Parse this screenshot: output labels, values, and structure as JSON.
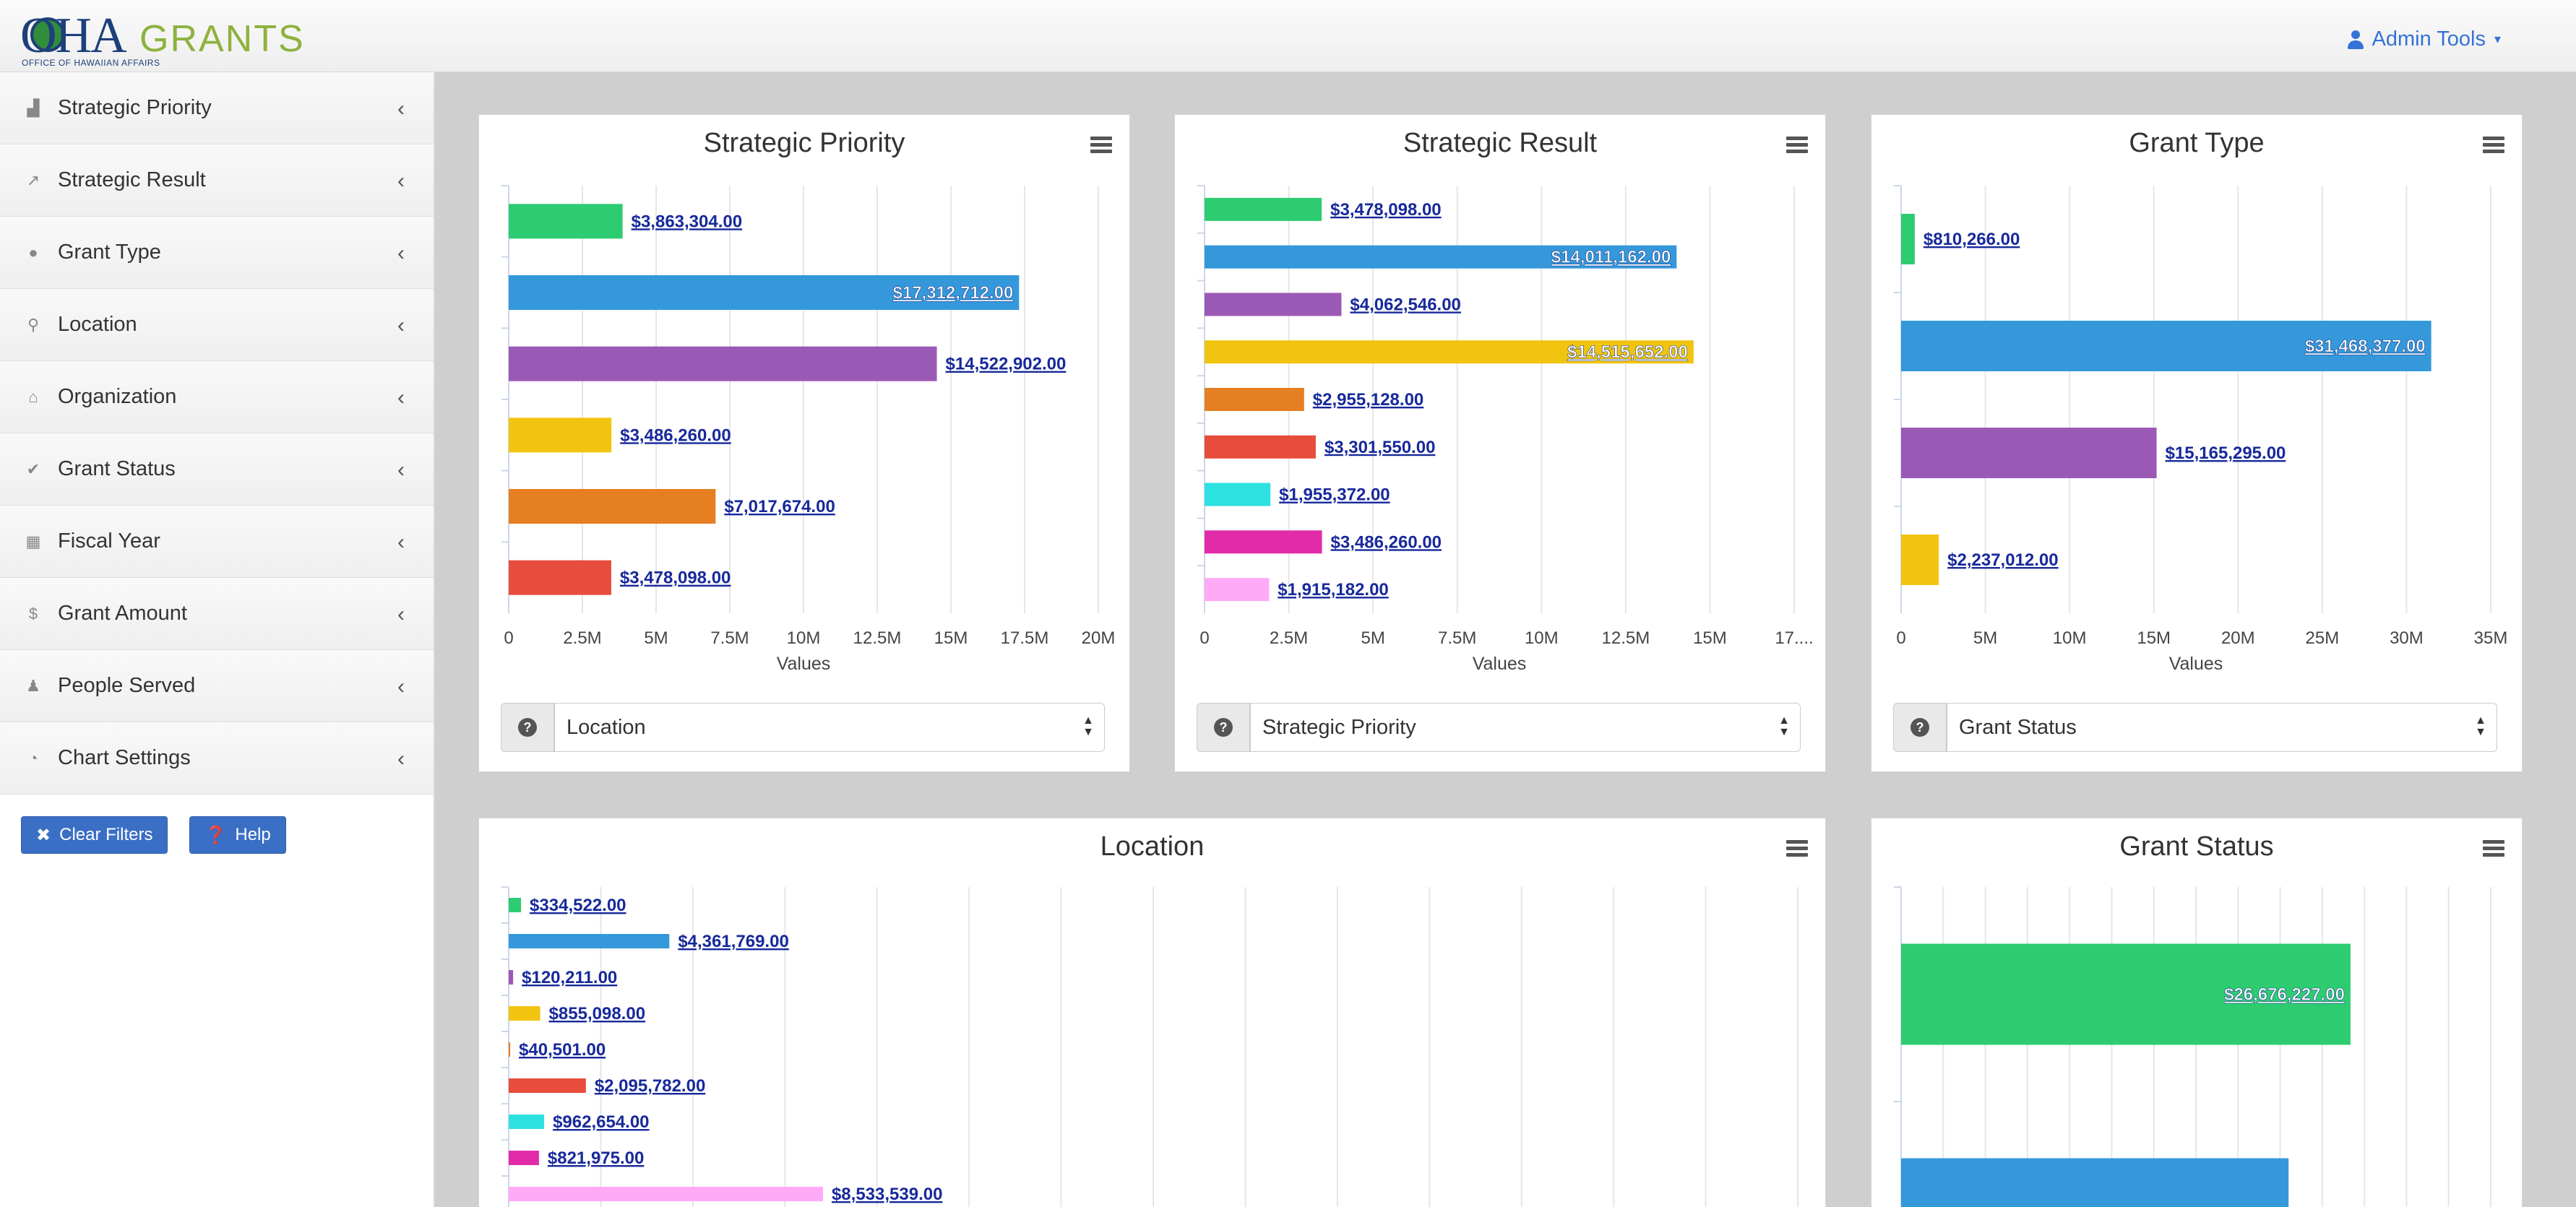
{
  "header": {
    "logo_main": "OHA",
    "logo_grants": "GRANTS",
    "logo_sub": "OFFICE OF HAWAIIAN AFFAIRS",
    "admin_label": "Admin Tools"
  },
  "sidebar": {
    "items": [
      {
        "label": "Strategic Priority",
        "icon": "area-chart-icon",
        "glyph": "▟"
      },
      {
        "label": "Strategic Result",
        "icon": "line-chart-icon",
        "glyph": "↗"
      },
      {
        "label": "Grant Type",
        "icon": "info-icon",
        "glyph": "●"
      },
      {
        "label": "Location",
        "icon": "map-marker-icon",
        "glyph": "⚲"
      },
      {
        "label": "Organization",
        "icon": "home-icon",
        "glyph": "⌂"
      },
      {
        "label": "Grant Status",
        "icon": "check-circle-icon",
        "glyph": "✔"
      },
      {
        "label": "Fiscal Year",
        "icon": "calendar-icon",
        "glyph": "▦"
      },
      {
        "label": "Grant Amount",
        "icon": "dollar-icon",
        "glyph": "$"
      },
      {
        "label": "People Served",
        "icon": "users-icon",
        "glyph": "♟"
      },
      {
        "label": "Chart Settings",
        "icon": "pie-chart-icon",
        "glyph": "◔"
      }
    ],
    "clear_filters": "Clear Filters",
    "help": "Help"
  },
  "colors": {
    "green": "#2ecc71",
    "blue": "#3498db",
    "purple": "#9b59b6",
    "yellow": "#f1c40f",
    "orange": "#e67e22",
    "red": "#e74c3c",
    "cyan": "#2de1e1",
    "magenta": "#e22ba8",
    "pink": "#ffaaf6"
  },
  "panels": {
    "strategic_priority": {
      "title": "Strategic Priority",
      "selector": "Location"
    },
    "strategic_result": {
      "title": "Strategic Result",
      "selector": "Strategic Priority"
    },
    "grant_type": {
      "title": "Grant Type",
      "selector": "Grant Status"
    },
    "location": {
      "title": "Location"
    },
    "grant_status": {
      "title": "Grant Status"
    }
  },
  "chart_data": [
    {
      "id": "strategic_priority",
      "type": "bar",
      "title": "Strategic Priority",
      "xlabel": "Values",
      "xlim": [
        0,
        20000000
      ],
      "ticks": [
        "0",
        "2.5M",
        "5M",
        "7.5M",
        "10M",
        "12.5M",
        "15M",
        "17.5M",
        "20M"
      ],
      "values": [
        3863304,
        17312712,
        14522902,
        3486260,
        7017674,
        3478098
      ],
      "labels": [
        "$3,863,304.00",
        "$17,312,712.00",
        "$14,522,902.00",
        "$3,486,260.00",
        "$7,017,674.00",
        "$3,478,098.00"
      ],
      "colors": [
        "#2ecc71",
        "#3498db",
        "#9b59b6",
        "#f1c40f",
        "#e67e22",
        "#e74c3c"
      ],
      "inside": [
        false,
        true,
        false,
        false,
        false,
        false
      ]
    },
    {
      "id": "strategic_result",
      "type": "bar",
      "title": "Strategic Result",
      "xlabel": "Values",
      "xlim": [
        0,
        17500000
      ],
      "ticks": [
        "0",
        "2.5M",
        "5M",
        "7.5M",
        "10M",
        "12.5M",
        "15M",
        "17...."
      ],
      "values": [
        3478098,
        14011162,
        4062546,
        14515652,
        2955128,
        3301550,
        1955372,
        3486260,
        1915182
      ],
      "labels": [
        "$3,478,098.00",
        "$14,011,162.00",
        "$4,062,546.00",
        "$14,515,652.00",
        "$2,955,128.00",
        "$3,301,550.00",
        "$1,955,372.00",
        "$3,486,260.00",
        "$1,915,182.00"
      ],
      "colors": [
        "#2ecc71",
        "#3498db",
        "#9b59b6",
        "#f1c40f",
        "#e67e22",
        "#e74c3c",
        "#2de1e1",
        "#e22ba8",
        "#ffaaf6"
      ],
      "inside": [
        false,
        true,
        false,
        true,
        false,
        false,
        false,
        false,
        false
      ]
    },
    {
      "id": "grant_type",
      "type": "bar",
      "title": "Grant Type",
      "xlabel": "Values",
      "xlim": [
        0,
        35000000
      ],
      "ticks": [
        "0",
        "5M",
        "10M",
        "15M",
        "20M",
        "25M",
        "30M",
        "35M"
      ],
      "values": [
        810266,
        31468377,
        15165295,
        2237012
      ],
      "labels": [
        "$810,266.00",
        "$31,468,377.00",
        "$15,165,295.00",
        "$2,237,012.00"
      ],
      "colors": [
        "#2ecc71",
        "#3498db",
        "#9b59b6",
        "#f1c40f"
      ],
      "inside": [
        false,
        true,
        false,
        false
      ]
    },
    {
      "id": "location",
      "type": "bar",
      "title": "Location",
      "xlabel": "",
      "xlim": [
        0,
        35000000
      ],
      "ticks": [],
      "values": [
        334522,
        4361769,
        120211,
        855098,
        40501,
        2095782,
        962654,
        821975,
        8533539
      ],
      "labels": [
        "$334,522.00",
        "$4,361,769.00",
        "$120,211.00",
        "$855,098.00",
        "$40,501.00",
        "$2,095,782.00",
        "$962,654.00",
        "$821,975.00",
        "$8,533,539.00"
      ],
      "colors": [
        "#2ecc71",
        "#3498db",
        "#9b59b6",
        "#f1c40f",
        "#e67e22",
        "#e74c3c",
        "#2de1e1",
        "#e22ba8",
        "#ffaaf6"
      ],
      "inside": [
        false,
        false,
        false,
        false,
        false,
        false,
        false,
        false,
        false
      ]
    },
    {
      "id": "grant_status",
      "type": "bar",
      "title": "Grant Status",
      "xlabel": "",
      "xlim": [
        0,
        35000000
      ],
      "ticks": [],
      "values": [
        26676227,
        23000000
      ],
      "labels": [
        "$26,676,227.00",
        ""
      ],
      "colors": [
        "#2ecc71",
        "#3498db"
      ],
      "inside": [
        true,
        true
      ]
    }
  ]
}
